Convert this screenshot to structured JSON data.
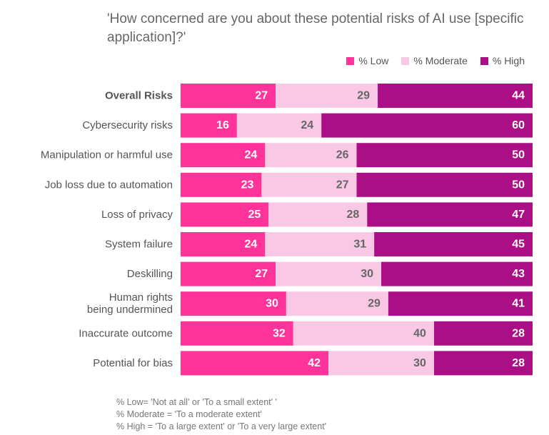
{
  "title": "'How concerned are you about these potential risks of AI use [specific application]?'",
  "legend": [
    {
      "label": "% Low",
      "color": "#ff3399"
    },
    {
      "label": "% Moderate",
      "color": "#f9c8e4"
    },
    {
      "label": "% High",
      "color": "#ab0f85"
    }
  ],
  "chart_data": {
    "type": "bar",
    "orientation": "horizontal",
    "stacked": true,
    "percent_total": 100,
    "categories": [
      "Overall Risks",
      "Cybersecurity risks",
      "Manipulation or harmful use",
      "Job loss due to automation",
      "Loss of privacy",
      "System failure",
      "Deskilling",
      "Human rights being undermined",
      "Inaccurate outcome",
      "Potential for bias"
    ],
    "bold_category": "Overall Risks",
    "series": [
      {
        "name": "% Low",
        "color": "#ff3399",
        "label_color": "#ffffff",
        "values": [
          27,
          16,
          24,
          23,
          25,
          24,
          27,
          30,
          32,
          42
        ]
      },
      {
        "name": "% Moderate",
        "color": "#f9c8e4",
        "label_color": "#666666",
        "values": [
          29,
          24,
          26,
          27,
          28,
          31,
          30,
          29,
          40,
          30
        ]
      },
      {
        "name": "% High",
        "color": "#ab0f85",
        "label_color": "#ffffff",
        "values": [
          44,
          60,
          50,
          50,
          47,
          45,
          43,
          41,
          28,
          28
        ]
      }
    ],
    "grid": false,
    "legend_position": "top-right"
  },
  "notes": [
    "% Low= 'Not at all' or 'To a small extent' '",
    "% Moderate = 'To a moderate extent'",
    "% High = 'To a large extent' or 'To a very large extent'"
  ]
}
